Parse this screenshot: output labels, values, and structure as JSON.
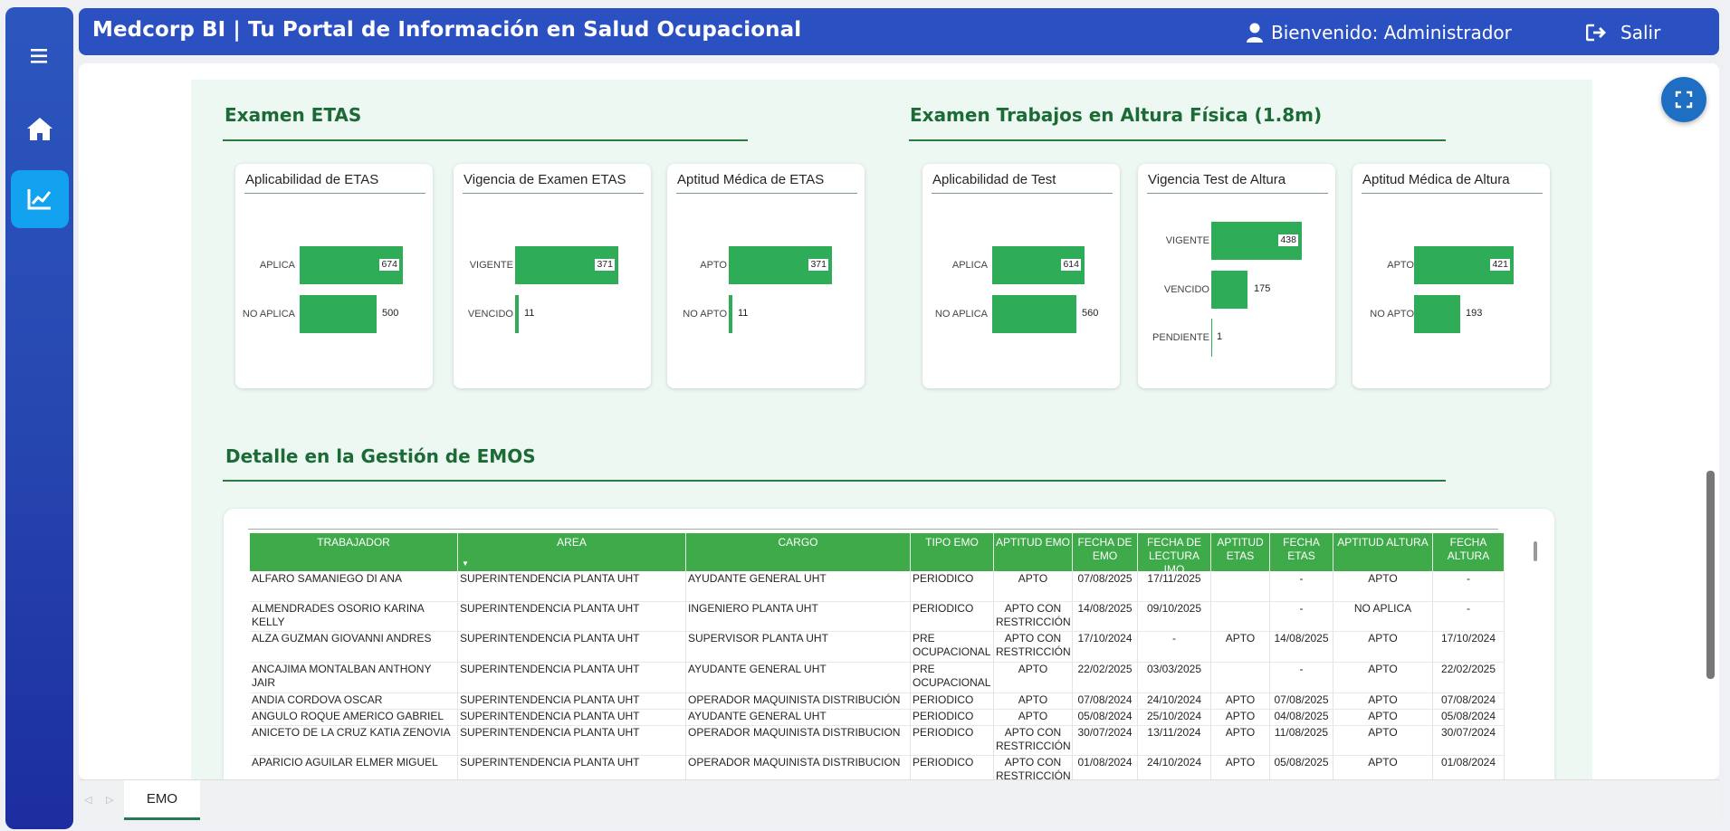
{
  "header": {
    "title": "Medcorp BI | Tu Portal de Información en Salud Ocupacional",
    "user_label": "Bienvenido: Administrador",
    "exit_label": "Salir"
  },
  "sections": {
    "etas_title": "Examen ETAS",
    "altura_title": "Examen Trabajos en Altura Física (1.8m)",
    "detalle_title": "Detalle en la Gestión de EMOS"
  },
  "cards": [
    {
      "title": "Aplicabilidad de ETAS",
      "max": 674,
      "bars": [
        {
          "label": "APLICA",
          "value": 674
        },
        {
          "label": "NO APLICA",
          "value": 500
        }
      ]
    },
    {
      "title": "Vigencia de Examen ETAS",
      "max": 371,
      "bars": [
        {
          "label": "VIGENTE",
          "value": 371
        },
        {
          "label": "VENCIDO",
          "value": 11
        }
      ]
    },
    {
      "title": "Aptitud Médica de ETAS",
      "max": 371,
      "bars": [
        {
          "label": "APTO",
          "value": 371
        },
        {
          "label": "NO APTO",
          "value": 11
        }
      ]
    },
    {
      "title": "Aplicabilidad de Test",
      "max": 614,
      "bars": [
        {
          "label": "APLICA",
          "value": 614
        },
        {
          "label": "NO APLICA",
          "value": 560
        }
      ]
    },
    {
      "title": "Vigencia Test de Altura",
      "max": 438,
      "bars": [
        {
          "label": "VIGENTE",
          "value": 438
        },
        {
          "label": "VENCIDO",
          "value": 175
        },
        {
          "label": "PENDIENTE",
          "value": 1
        }
      ]
    },
    {
      "title": "Aptitud Médica de Altura",
      "max": 421,
      "bars": [
        {
          "label": "APTO",
          "value": 421
        },
        {
          "label": "NO APTO",
          "value": 193
        }
      ]
    }
  ],
  "table": {
    "headers": [
      "TRABAJADOR",
      "AREA",
      "CARGO",
      "TIPO EMO",
      "APTITUD EMO",
      "FECHA DE EMO",
      "FECHA DE LECTURA IMO",
      "APTITUD ETAS",
      "FECHA ETAS",
      "APTITUD ALTURA",
      "FECHA ALTURA"
    ],
    "rows": [
      [
        "ALFARO SAMANIEGO DI ANA",
        "SUPERINTENDENCIA PLANTA UHT",
        "AYUDANTE GENERAL UHT",
        "PERIODICO",
        "APTO",
        "07/08/2025",
        "17/11/2025",
        "",
        "-",
        "APTO",
        "-"
      ],
      [
        "ALMENDRADES OSORIO KARINA KELLY",
        "SUPERINTENDENCIA PLANTA UHT",
        "INGENIERO PLANTA UHT",
        "PERIODICO",
        "APTO CON RESTRICCIÓN",
        "14/08/2025",
        "09/10/2025",
        "",
        "-",
        "NO APLICA",
        "-"
      ],
      [
        "ALZA GUZMAN GIOVANNI ANDRES",
        "SUPERINTENDENCIA PLANTA UHT",
        "SUPERVISOR PLANTA UHT",
        "PRE OCUPACIONAL",
        "APTO CON RESTRICCIÓN",
        "17/10/2024",
        "-",
        "APTO",
        "14/08/2025",
        "APTO",
        "17/10/2024"
      ],
      [
        "ANCAJIMA MONTALBAN ANTHONY JAIR",
        "SUPERINTENDENCIA PLANTA UHT",
        "AYUDANTE GENERAL UHT",
        "PRE OCUPACIONAL",
        "APTO",
        "22/02/2025",
        "03/03/2025",
        "",
        "-",
        "APTO",
        "22/02/2025"
      ],
      [
        "ANDIA CORDOVA OSCAR",
        "SUPERINTENDENCIA PLANTA UHT",
        "OPERADOR MAQUINISTA DISTRIBUCIÓN",
        "PERIODICO",
        "APTO",
        "07/08/2024",
        "24/10/2024",
        "APTO",
        "07/08/2025",
        "APTO",
        "07/08/2024"
      ],
      [
        "ANGULO ROQUE AMERICO GABRIEL",
        "SUPERINTENDENCIA PLANTA UHT",
        "AYUDANTE GENERAL UHT",
        "PERIODICO",
        "APTO",
        "05/08/2024",
        "25/10/2024",
        "APTO",
        "04/08/2025",
        "APTO",
        "05/08/2024"
      ],
      [
        "ANICETO DE LA CRUZ KATIA ZENOVIA",
        "SUPERINTENDENCIA PLANTA UHT",
        "OPERADOR MAQUINISTA DISTRIBUCION",
        "PERIODICO",
        "APTO CON RESTRICCIÓN",
        "30/07/2024",
        "13/11/2024",
        "APTO",
        "11/08/2025",
        "APTO",
        "30/07/2024"
      ],
      [
        "APARICIO AGUILAR ELMER MIGUEL",
        "SUPERINTENDENCIA PLANTA UHT",
        "OPERADOR MAQUINISTA DISTRIBUCION",
        "PERIODICO",
        "APTO CON RESTRICCIÓN",
        "01/08/2024",
        "24/10/2024",
        "APTO",
        "05/08/2025",
        "APTO",
        "01/08/2024"
      ]
    ]
  },
  "tabs": {
    "active": "EMO"
  },
  "colors": {
    "header": "#2b50c2",
    "bar": "#2fac57",
    "table_header": "#3faa49",
    "section_title": "#1c6a36"
  }
}
